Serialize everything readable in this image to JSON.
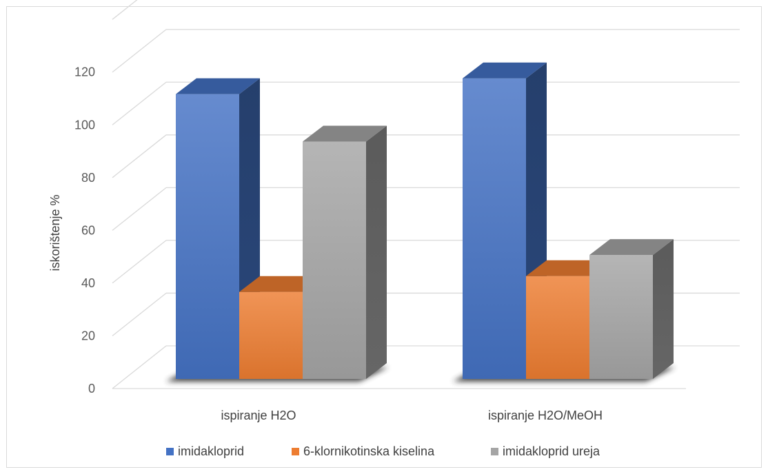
{
  "chart_data": {
    "type": "bar",
    "variant": "3d-clustered-column",
    "categories": [
      "ispiranje H2O",
      "ispiranje H2O/MeOH"
    ],
    "series": [
      {
        "name": "imidakloprid",
        "values": [
          108,
          114
        ],
        "color": "#4472c4"
      },
      {
        "name": "6-klornikotinska kiselina",
        "values": [
          33,
          39
        ],
        "color": "#ed7d31"
      },
      {
        "name": "imidakloprid ureja",
        "values": [
          90,
          47
        ],
        "color": "#a5a5a5"
      }
    ],
    "title": "",
    "xlabel": "",
    "ylabel": "iskorištenje %",
    "ylim": [
      0,
      120
    ],
    "yticks": [
      0,
      20,
      40,
      60,
      80,
      100,
      120
    ],
    "grid": true,
    "legend_position": "bottom"
  }
}
